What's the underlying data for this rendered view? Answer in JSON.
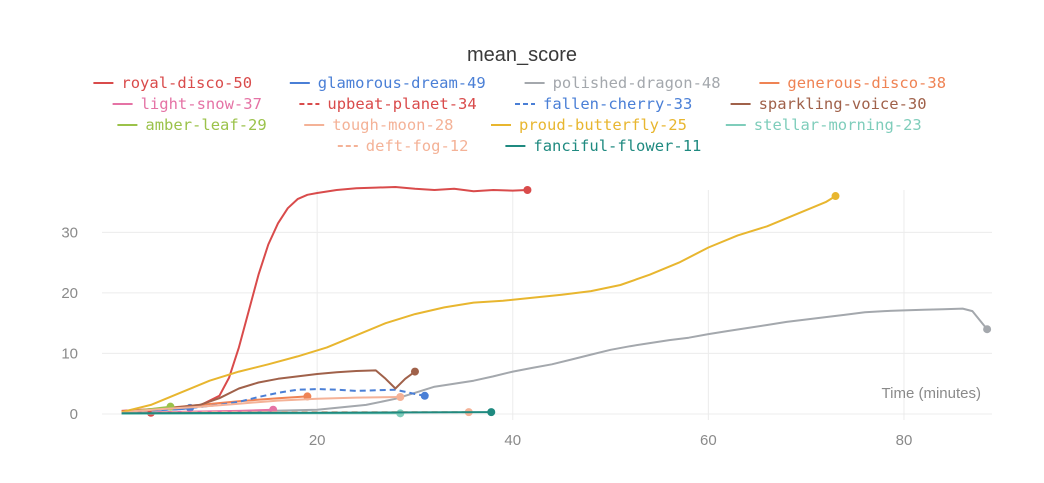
{
  "chart_data": {
    "type": "line",
    "title": "mean_score",
    "xlabel": "Time (minutes)",
    "ylabel": "",
    "xlim": [
      -2,
      89
    ],
    "ylim": [
      -1,
      37
    ],
    "x_ticks": [
      20,
      40,
      60,
      80
    ],
    "y_ticks": [
      0,
      10,
      20,
      30
    ],
    "grid": true,
    "legend_position": "top-center",
    "series": [
      {
        "name": "royal-disco-50",
        "color": "#d94b4b",
        "dash": false,
        "x": [
          0,
          2,
          4,
          6,
          8,
          10,
          11,
          12,
          13,
          14,
          15,
          16,
          17,
          18,
          19,
          20,
          22,
          24,
          26,
          28,
          30,
          32,
          34,
          36,
          38,
          40,
          41.5
        ],
        "y": [
          0.5,
          0.7,
          0.9,
          1.1,
          1.4,
          3,
          6,
          11,
          17,
          23,
          28,
          31.5,
          34,
          35.5,
          36.2,
          36.5,
          37,
          37.3,
          37.4,
          37.5,
          37.2,
          37,
          37.2,
          36.8,
          37,
          36.9,
          37
        ]
      },
      {
        "name": "glamorous-dream-49",
        "color": "#4a7fd6",
        "dash": false,
        "x": [
          0,
          2,
          4,
          6,
          7
        ],
        "y": [
          0.3,
          0.5,
          0.7,
          0.8,
          1.0
        ]
      },
      {
        "name": "polished-dragon-48",
        "color": "#a4a8ad",
        "dash": false,
        "x": [
          0,
          5,
          10,
          15,
          20,
          25,
          28,
          30,
          32,
          34,
          36,
          38,
          40,
          42,
          44,
          46,
          48,
          50,
          52,
          54,
          56,
          58,
          60,
          62,
          64,
          66,
          68,
          70,
          72,
          74,
          76,
          78,
          80,
          82,
          84,
          86,
          87,
          88.5
        ],
        "y": [
          0.2,
          0.3,
          0.4,
          0.5,
          0.7,
          1.5,
          2.5,
          3.5,
          4.5,
          5,
          5.5,
          6.2,
          7,
          7.6,
          8.2,
          9,
          9.8,
          10.6,
          11.2,
          11.7,
          12.2,
          12.6,
          13.2,
          13.7,
          14.2,
          14.7,
          15.2,
          15.6,
          16,
          16.4,
          16.8,
          17,
          17.1,
          17.2,
          17.3,
          17.4,
          17,
          14
        ]
      },
      {
        "name": "generous-disco-38",
        "color": "#ef8354",
        "dash": false,
        "x": [
          0,
          4,
          8,
          12,
          16,
          19
        ],
        "y": [
          0.4,
          0.9,
          1.5,
          2.1,
          2.6,
          2.9
        ]
      },
      {
        "name": "light-snow-37",
        "color": "#e573a5",
        "dash": false,
        "x": [
          0,
          4,
          8,
          12,
          15.5
        ],
        "y": [
          0.2,
          0.3,
          0.4,
          0.5,
          0.7
        ]
      },
      {
        "name": "upbeat-planet-34",
        "color": "#d94b4b",
        "dash": true,
        "x": [
          0,
          1,
          2,
          3
        ],
        "y": [
          0.1,
          0.2,
          0.1,
          0.2
        ]
      },
      {
        "name": "fallen-cherry-33",
        "color": "#4a7fd6",
        "dash": true,
        "x": [
          0,
          6,
          10,
          12,
          14,
          16,
          18,
          20,
          22,
          24,
          26,
          28,
          30,
          31
        ],
        "y": [
          0.3,
          0.8,
          1.5,
          2,
          2.8,
          3.5,
          4,
          4.1,
          4,
          3.8,
          3.9,
          4,
          3.3,
          3
        ]
      },
      {
        "name": "sparkling-voice-30",
        "color": "#a0614a",
        "dash": false,
        "x": [
          0,
          4,
          8,
          10,
          12,
          14,
          16,
          18,
          20,
          22,
          24,
          26,
          27,
          28,
          29,
          30
        ],
        "y": [
          0.3,
          0.8,
          1.5,
          2.6,
          4.2,
          5.2,
          5.8,
          6.2,
          6.6,
          6.9,
          7.1,
          7.2,
          5.8,
          4.2,
          5.8,
          7
        ]
      },
      {
        "name": "amber-leaf-29",
        "color": "#9bc24a",
        "dash": false,
        "x": [
          0,
          2,
          4,
          5
        ],
        "y": [
          0.2,
          0.6,
          1.0,
          1.2
        ]
      },
      {
        "name": "tough-moon-28",
        "color": "#f4b297",
        "dash": false,
        "x": [
          0,
          4,
          8,
          12,
          16,
          20,
          24,
          28.5
        ],
        "y": [
          0.3,
          0.8,
          1.2,
          1.7,
          2.2,
          2.5,
          2.7,
          2.8
        ]
      },
      {
        "name": "proud-butterfly-25",
        "color": "#e8b62f",
        "dash": false,
        "x": [
          0,
          3,
          6,
          9,
          12,
          15,
          18,
          21,
          24,
          27,
          30,
          33,
          36,
          39,
          42,
          45,
          48,
          51,
          54,
          57,
          60,
          63,
          66,
          69,
          72,
          73
        ],
        "y": [
          0.3,
          1.5,
          3.5,
          5.5,
          7,
          8.2,
          9.5,
          11,
          13,
          15,
          16.5,
          17.6,
          18.4,
          18.7,
          19.2,
          19.7,
          20.3,
          21.3,
          23,
          25,
          27.5,
          29.5,
          31,
          33,
          35,
          36
        ]
      },
      {
        "name": "stellar-morning-23",
        "color": "#7fcdbb",
        "dash": false,
        "x": [
          0,
          10,
          20,
          28.5
        ],
        "y": [
          0.05,
          0.08,
          0.1,
          0.1
        ]
      },
      {
        "name": "deft-fog-12",
        "color": "#f4b297",
        "dash": true,
        "x": [
          0,
          10,
          20,
          30,
          35.5
        ],
        "y": [
          0.2,
          0.3,
          0.3,
          0.3,
          0.3
        ]
      },
      {
        "name": "fanciful-flower-11",
        "color": "#1f8a80",
        "dash": false,
        "x": [
          0,
          10,
          20,
          30,
          37.8
        ],
        "y": [
          0.1,
          0.15,
          0.2,
          0.25,
          0.3
        ]
      }
    ]
  }
}
